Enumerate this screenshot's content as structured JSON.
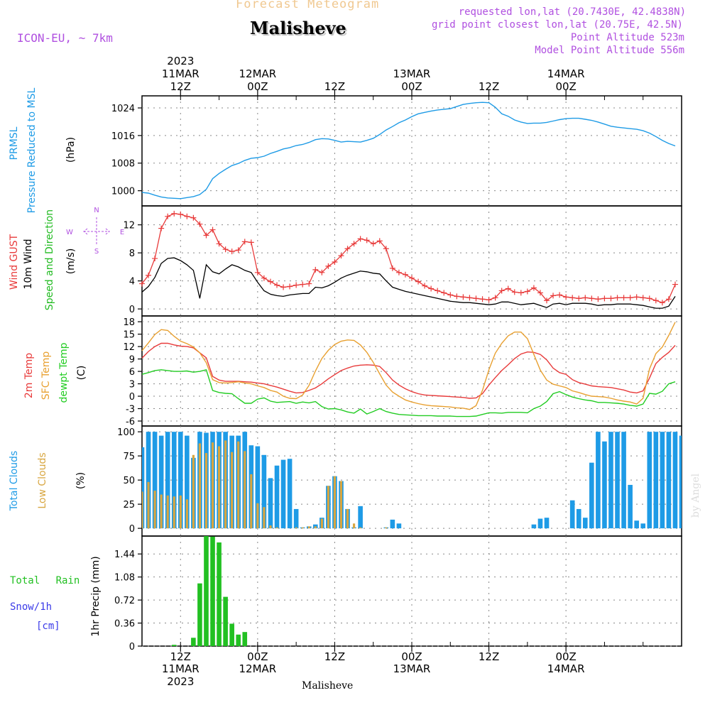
{
  "header": {
    "product": "Forecast Meteogram",
    "location": "Malisheve",
    "model": "ICON-EU, ~ 7km",
    "requested": "requested lon,lat (20.7430E, 42.4838N)",
    "grid_point": "grid point closest lon,lat (20.75E, 42.5N)",
    "point_altitude": "Point Altitude 523m",
    "model_altitude": "Model Point Altitude 556m",
    "watermark": "by Angel",
    "footer_location": "Malisheve"
  },
  "colors": {
    "pressure": "#1e9be6",
    "gust": "#e83a3a",
    "wind": "#000000",
    "direction_label": "#22bb22",
    "sfc_temp": "#e8a030",
    "dewpoint": "#22cc22",
    "total_clouds": "#1e9be6",
    "low_clouds": "#d8a640",
    "rain": "#22c022",
    "snow": "#3a3ae8",
    "header_purple": "#b050e0",
    "header_orange": "#f0c890",
    "grid": "#888888"
  },
  "chart_data": [
    {
      "type": "line",
      "panel": "pressure",
      "ylabel_parts": [
        "PRMSL",
        "Pressure Reduced to MSL",
        "(hPa)"
      ],
      "yticks": [
        1000,
        1008,
        1016,
        1024
      ],
      "ylim": [
        995.6,
        1027.5
      ],
      "x_start_hour": 6,
      "x_step_hours": 1,
      "series": [
        {
          "name": "PRMSL",
          "values": [
            999.5,
            999.3,
            998.7,
            998.2,
            997.9,
            997.8,
            997.7,
            998.0,
            998.3,
            998.9,
            1000.4,
            1003.5,
            1005.0,
            1006.2,
            1007.3,
            1007.9,
            1008.8,
            1009.4,
            1009.6,
            1010.0,
            1010.8,
            1011.4,
            1012.1,
            1012.5,
            1013.1,
            1013.4,
            1014.0,
            1014.8,
            1015.1,
            1015.0,
            1014.6,
            1014.1,
            1014.3,
            1014.2,
            1014.1,
            1014.6,
            1015.2,
            1016.3,
            1017.6,
            1018.6,
            1019.7,
            1020.5,
            1021.5,
            1022.3,
            1022.7,
            1023.1,
            1023.4,
            1023.6,
            1023.8,
            1024.4,
            1025.0,
            1025.3,
            1025.5,
            1025.6,
            1025.5,
            1024.2,
            1022.3,
            1021.6,
            1020.5,
            1019.9,
            1019.5,
            1019.6,
            1019.6,
            1019.8,
            1020.2,
            1020.6,
            1020.9,
            1021.0,
            1021.0,
            1020.7,
            1020.4,
            1019.9,
            1019.3,
            1018.7,
            1018.4,
            1018.2,
            1018.0,
            1017.8,
            1017.4,
            1016.7,
            1015.7,
            1014.6,
            1013.7,
            1013.0
          ]
        }
      ]
    },
    {
      "type": "line",
      "panel": "wind",
      "ylabel_parts": [
        "Wind GUST",
        "10m Wind",
        "Speed and Direction",
        "(m/s)"
      ],
      "yticks": [
        0,
        4,
        8,
        12
      ],
      "ylim": [
        -1.0,
        14.7
      ],
      "x_start_hour": 6,
      "x_step_hours": 1,
      "compass": {
        "n": "N",
        "s": "S",
        "w": "W",
        "e": "E"
      },
      "series": [
        {
          "name": "Wind GUST",
          "values": [
            3.6,
            4.8,
            7.2,
            11.5,
            13.2,
            13.6,
            13.5,
            13.2,
            13.0,
            12.1,
            10.5,
            11.3,
            9.3,
            8.5,
            8.2,
            8.4,
            9.6,
            9.5,
            5.2,
            4.4,
            3.9,
            3.4,
            3.1,
            3.2,
            3.4,
            3.5,
            3.6,
            5.6,
            5.2,
            6.1,
            6.7,
            7.6,
            8.6,
            9.3,
            10.0,
            9.8,
            9.3,
            9.7,
            8.6,
            5.8,
            5.2,
            4.9,
            4.4,
            3.9,
            3.3,
            2.9,
            2.6,
            2.3,
            2.0,
            1.8,
            1.7,
            1.6,
            1.5,
            1.4,
            1.3,
            1.6,
            2.6,
            2.9,
            2.4,
            2.3,
            2.5,
            3.0,
            2.3,
            1.2,
            1.9,
            2.0,
            1.7,
            1.6,
            1.5,
            1.6,
            1.5,
            1.4,
            1.5,
            1.5,
            1.6,
            1.6,
            1.6,
            1.7,
            1.6,
            1.5,
            1.2,
            0.9,
            1.4,
            3.5
          ]
        },
        {
          "name": "10m Wind",
          "values": [
            2.4,
            3.2,
            4.5,
            6.5,
            7.2,
            7.3,
            6.9,
            6.3,
            5.5,
            1.5,
            6.3,
            5.3,
            5.0,
            5.7,
            6.3,
            6.0,
            5.5,
            5.2,
            3.8,
            2.6,
            2.1,
            1.9,
            1.8,
            2.0,
            2.1,
            2.2,
            2.2,
            3.1,
            3.0,
            3.3,
            3.8,
            4.4,
            4.8,
            5.1,
            5.4,
            5.3,
            5.1,
            5.0,
            4.0,
            3.1,
            2.8,
            2.5,
            2.3,
            2.1,
            1.9,
            1.7,
            1.5,
            1.3,
            1.1,
            1.0,
            0.9,
            0.9,
            0.8,
            0.7,
            0.6,
            0.7,
            1.0,
            1.0,
            0.8,
            0.6,
            0.7,
            0.8,
            0.5,
            0.2,
            0.7,
            0.8,
            0.6,
            0.8,
            0.8,
            0.8,
            0.7,
            0.5,
            0.6,
            0.6,
            0.7,
            0.7,
            0.7,
            0.6,
            0.5,
            0.3,
            0.1,
            0.1,
            0.4,
            1.8
          ]
        }
      ]
    },
    {
      "type": "line",
      "panel": "temperature",
      "ylabel_parts": [
        "2m Temp",
        "SFC Temp",
        "dewpt Temp",
        "(C)"
      ],
      "yticks": [
        -6,
        -3,
        0,
        3,
        6,
        9,
        12,
        15,
        18
      ],
      "ylim": [
        -7.2,
        19.4
      ],
      "x_start_hour": 6,
      "x_step_hours": 1,
      "series": [
        {
          "name": "2m Temp",
          "values": [
            9.2,
            10.8,
            12.0,
            12.8,
            12.8,
            12.4,
            12.1,
            12.0,
            11.7,
            10.5,
            9.3,
            4.8,
            3.9,
            3.6,
            3.6,
            3.6,
            3.5,
            3.4,
            3.2,
            3.0,
            2.6,
            2.2,
            1.7,
            1.2,
            0.8,
            0.9,
            1.4,
            2.0,
            3.0,
            4.2,
            5.2,
            6.2,
            6.8,
            7.3,
            7.5,
            7.6,
            7.5,
            7.2,
            5.7,
            3.9,
            2.7,
            1.8,
            1.1,
            0.6,
            0.3,
            0.2,
            0.1,
            0.0,
            -0.1,
            -0.2,
            -0.3,
            -0.5,
            -0.4,
            0.6,
            2.7,
            4.5,
            6.2,
            7.6,
            9.1,
            10.2,
            10.7,
            10.6,
            10.1,
            8.8,
            6.8,
            5.7,
            5.3,
            4.0,
            3.3,
            2.9,
            2.5,
            2.3,
            2.2,
            2.1,
            1.8,
            1.5,
            1.0,
            0.8,
            1.3,
            4.4,
            7.9,
            9.4,
            10.6,
            12.3
          ]
        },
        {
          "name": "SFC Temp",
          "values": [
            11.0,
            12.9,
            14.9,
            16.1,
            15.9,
            14.5,
            13.3,
            12.7,
            11.9,
            10.5,
            8.1,
            4.0,
            3.3,
            3.2,
            3.3,
            3.5,
            3.2,
            3.0,
            2.5,
            2.1,
            1.4,
            1.0,
            0.0,
            -0.5,
            -0.6,
            0.3,
            2.6,
            6.1,
            9.1,
            11.1,
            12.5,
            13.3,
            13.6,
            13.5,
            12.4,
            10.6,
            8.2,
            5.4,
            2.7,
            1.0,
            0.0,
            -0.9,
            -1.4,
            -1.8,
            -2.1,
            -2.3,
            -2.4,
            -2.5,
            -2.6,
            -2.8,
            -2.9,
            -3.2,
            -2.3,
            1.4,
            6.4,
            10.4,
            12.8,
            14.6,
            15.5,
            15.5,
            13.9,
            10.1,
            6.3,
            3.9,
            2.9,
            2.5,
            2.1,
            1.3,
            0.9,
            0.4,
            0.0,
            -0.1,
            -0.2,
            -0.5,
            -0.9,
            -1.2,
            -1.4,
            -1.9,
            -0.5,
            6.6,
            10.3,
            11.9,
            14.7,
            17.9
          ]
        },
        {
          "name": "dewpt Temp",
          "values": [
            5.3,
            5.7,
            6.2,
            6.4,
            6.2,
            6.0,
            6.0,
            6.1,
            5.8,
            6.0,
            6.4,
            1.4,
            0.9,
            0.7,
            0.6,
            -0.6,
            -1.7,
            -1.7,
            -0.7,
            -0.4,
            -1.2,
            -1.5,
            -1.4,
            -1.3,
            -1.7,
            -1.4,
            -1.6,
            -1.3,
            -2.5,
            -3.1,
            -3.0,
            -3.3,
            -3.8,
            -4.1,
            -3.1,
            -4.3,
            -3.7,
            -3.0,
            -3.7,
            -4.1,
            -4.4,
            -4.5,
            -4.6,
            -4.7,
            -4.7,
            -4.7,
            -4.8,
            -4.8,
            -4.8,
            -4.9,
            -4.9,
            -4.9,
            -4.8,
            -4.4,
            -4.0,
            -4.0,
            -4.1,
            -3.9,
            -3.9,
            -3.9,
            -4.0,
            -3.0,
            -2.4,
            -1.3,
            0.6,
            1.1,
            0.4,
            -0.2,
            -0.6,
            -0.9,
            -1.1,
            -1.5,
            -1.5,
            -1.6,
            -1.7,
            -1.9,
            -2.2,
            -2.4,
            -1.9,
            0.7,
            0.5,
            1.2,
            3.0,
            3.5
          ]
        }
      ]
    },
    {
      "type": "bar",
      "panel": "clouds",
      "ylabel_parts": [
        "Total Clouds",
        "Low Clouds",
        "(%)"
      ],
      "yticks": [
        0,
        25,
        50,
        75,
        100
      ],
      "ylim": [
        -8,
        106
      ],
      "x_start_hour": 6,
      "x_step_hours": 1,
      "series": [
        {
          "name": "Total Clouds",
          "values": [
            84,
            100,
            100,
            96,
            100,
            100,
            100,
            96,
            73,
            100,
            99,
            100,
            100,
            100,
            96,
            96,
            100,
            86,
            85,
            76,
            52,
            65,
            71,
            72,
            20,
            1,
            2,
            4,
            11,
            44,
            54,
            49,
            20,
            1,
            23,
            0,
            0,
            0,
            1,
            9,
            5,
            0,
            0,
            0,
            0,
            0,
            0,
            0,
            0,
            0,
            0,
            0,
            0,
            0,
            0,
            0,
            0,
            0,
            0,
            0,
            0,
            4,
            10,
            11,
            0,
            0,
            0,
            29,
            20,
            11,
            68,
            100,
            90,
            100,
            100,
            100,
            45,
            8,
            5,
            100,
            100,
            100,
            100,
            100,
            96
          ]
        },
        {
          "name": "Low Clouds",
          "values": [
            38,
            48,
            39,
            35,
            34,
            33,
            34,
            30,
            76,
            88,
            78,
            89,
            85,
            91,
            79,
            90,
            80,
            56,
            26,
            22,
            3,
            1,
            0,
            0,
            1,
            1,
            2,
            2,
            10,
            44,
            54,
            49,
            20,
            5,
            1,
            0,
            0,
            0,
            1,
            0,
            0,
            0,
            0,
            0,
            0,
            0,
            0,
            0,
            0,
            0,
            0,
            0,
            0,
            0,
            0,
            0,
            0,
            0,
            0,
            0,
            0,
            0,
            0,
            0,
            0,
            0,
            0,
            0,
            0,
            0,
            0,
            0,
            0,
            0,
            0,
            0,
            0,
            0,
            0,
            0,
            0,
            0,
            0,
            0,
            0
          ]
        }
      ]
    },
    {
      "type": "bar",
      "panel": "precipitation",
      "ylabel": "1hr Precip (mm)",
      "yticks": [
        0,
        0.36,
        0.72,
        1.08,
        1.44
      ],
      "ylim": [
        0,
        1.72
      ],
      "x_start_hour": 6,
      "x_step_hours": 1,
      "legend": {
        "rain": "Total Rain",
        "snow": "Snow/1h",
        "snow_unit": "[cm]"
      },
      "series": [
        {
          "name": "Total Rain",
          "values": [
            0,
            0,
            0,
            0,
            0,
            0.02,
            0,
            0,
            0.13,
            0.98,
            1.72,
            1.71,
            1.62,
            0.77,
            0.35,
            0.18,
            0.22,
            0,
            0,
            0,
            0,
            0,
            0,
            0,
            0,
            0,
            0,
            0,
            0,
            0,
            0,
            0,
            0,
            0,
            0,
            0,
            0,
            0,
            0,
            0,
            0,
            0,
            0,
            0,
            0,
            0,
            0,
            0,
            0,
            0,
            0,
            0,
            0,
            0,
            0,
            0,
            0,
            0,
            0,
            0,
            0,
            0,
            0,
            0,
            0,
            0,
            0,
            0,
            0,
            0,
            0,
            0,
            0,
            0,
            0,
            0,
            0,
            0,
            0,
            0,
            0,
            0,
            0,
            0
          ]
        }
      ]
    }
  ],
  "x_axis": {
    "major_ticks": [
      {
        "hour": 12,
        "top_label": "12Z",
        "top_date": "11MAR",
        "bottom_label": "12Z",
        "bottom_date": "11MAR",
        "year": "2023"
      },
      {
        "hour": 24,
        "top_label": "00Z",
        "top_date": "12MAR",
        "bottom_label": "00Z",
        "bottom_date": "12MAR"
      },
      {
        "hour": 36,
        "top_label": "12Z",
        "bottom_label": "12Z"
      },
      {
        "hour": 48,
        "top_label": "00Z",
        "top_date": "13MAR",
        "bottom_label": "00Z",
        "bottom_date": "13MAR"
      },
      {
        "hour": 60,
        "top_label": "12Z",
        "bottom_label": "12Z"
      },
      {
        "hour": 72,
        "top_label": "00Z",
        "top_date": "14MAR",
        "bottom_label": "00Z",
        "bottom_date": "14MAR"
      }
    ]
  }
}
